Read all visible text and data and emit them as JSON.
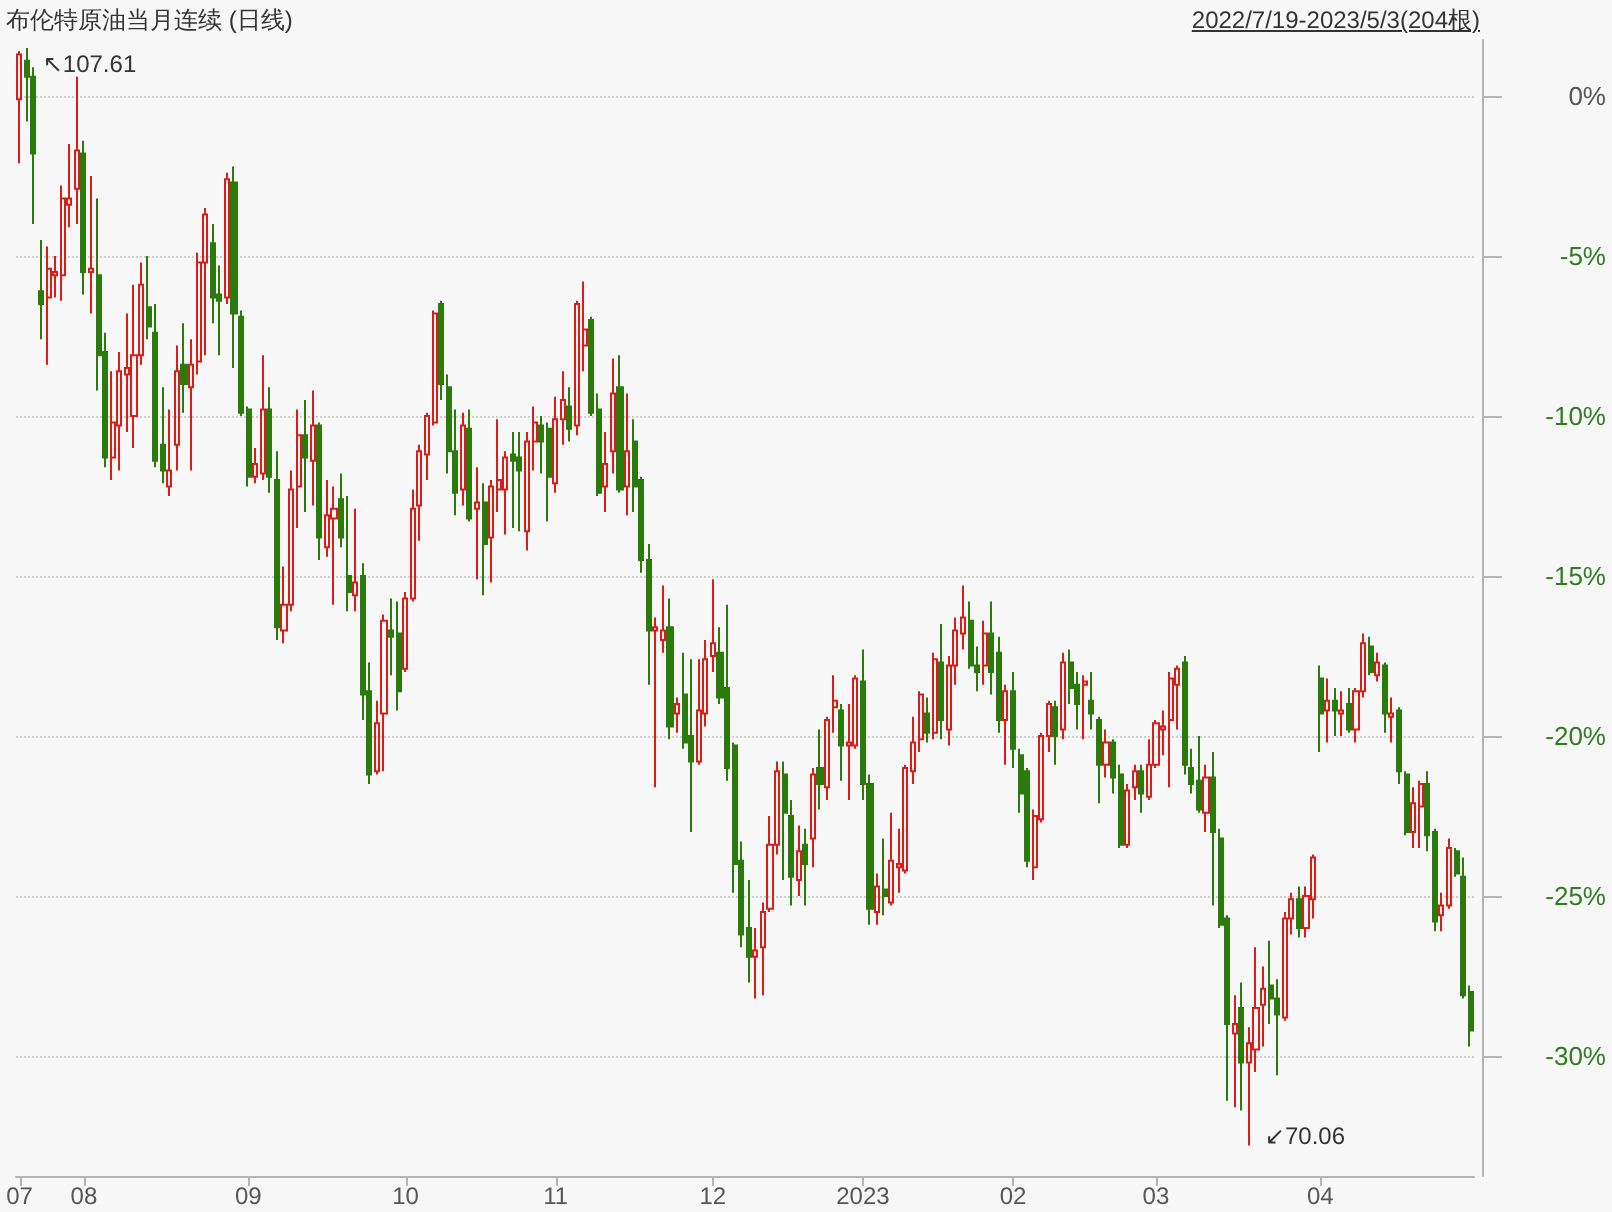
{
  "chart_data": {
    "type": "candlestick",
    "title": "布伦特原油当月连续 (日线)",
    "subtitle": "2022/7/19-2023/5/3(204根)",
    "categories": [
      "07",
      null,
      null,
      null,
      null,
      null,
      null,
      null,
      null,
      "08",
      null,
      null,
      null,
      null,
      null,
      null,
      null,
      null,
      null,
      null,
      null,
      null,
      null,
      null,
      null,
      null,
      null,
      null,
      null,
      null,
      null,
      null,
      "09",
      null,
      null,
      null,
      null,
      null,
      null,
      null,
      null,
      null,
      null,
      null,
      null,
      null,
      null,
      null,
      null,
      null,
      null,
      null,
      null,
      null,
      "10",
      null,
      null,
      null,
      null,
      null,
      null,
      null,
      null,
      null,
      null,
      null,
      null,
      null,
      null,
      null,
      null,
      null,
      null,
      null,
      null,
      "11",
      null,
      null,
      null,
      null,
      null,
      null,
      null,
      null,
      null,
      null,
      null,
      null,
      null,
      null,
      null,
      null,
      null,
      null,
      null,
      null,
      null,
      "12",
      null,
      null,
      null,
      null,
      null,
      null,
      null,
      null,
      null,
      null,
      null,
      null,
      null,
      null,
      null,
      null,
      null,
      null,
      null,
      null,
      "2023",
      null,
      null,
      null,
      null,
      null,
      null,
      null,
      null,
      null,
      null,
      null,
      null,
      null,
      null,
      null,
      null,
      null,
      null,
      null,
      null,
      "02",
      null,
      null,
      null,
      null,
      null,
      null,
      null,
      null,
      null,
      null,
      null,
      null,
      null,
      null,
      null,
      null,
      null,
      null,
      null,
      "03",
      null,
      null,
      null,
      null,
      null,
      null,
      null,
      null,
      null,
      null,
      null,
      null,
      null,
      null,
      null,
      null,
      null,
      null,
      null,
      null,
      null,
      null,
      "04",
      null,
      null,
      null,
      null,
      null,
      null,
      null,
      null,
      null,
      null,
      null,
      null,
      null,
      null,
      null,
      null,
      null,
      null,
      null,
      null,
      null
    ],
    "ohlc": [
      [
        -0.1,
        1.4,
        -2.1,
        1.3
      ],
      [
        1.1,
        1.5,
        -0.8,
        0.6
      ],
      [
        0.6,
        0.9,
        -4.0,
        -1.8
      ],
      [
        -6.1,
        -4.5,
        -7.6,
        -6.5
      ],
      [
        -6.3,
        -4.7,
        -8.4,
        -5.4
      ],
      [
        -5.6,
        -5.0,
        -6.3,
        -5.5
      ],
      [
        -5.6,
        -2.8,
        -6.4,
        -3.2
      ],
      [
        -3.4,
        -1.5,
        -4.1,
        -3.2
      ],
      [
        -2.9,
        0.6,
        -4.0,
        -1.7
      ],
      [
        -1.8,
        -1.4,
        -6.2,
        -5.5
      ],
      [
        -5.5,
        -2.5,
        -6.8,
        -5.4
      ],
      [
        -5.6,
        -3.2,
        -9.2,
        -8.1
      ],
      [
        -8.0,
        -7.4,
        -11.6,
        -11.3
      ],
      [
        -11.3,
        -8.6,
        -12.0,
        -10.2
      ],
      [
        -10.3,
        -8.0,
        -11.7,
        -8.6
      ],
      [
        -8.7,
        -6.8,
        -10.5,
        -8.5
      ],
      [
        -10.0,
        -5.9,
        -11.0,
        -8.1
      ],
      [
        -8.1,
        -5.2,
        -8.4,
        -5.9
      ],
      [
        -6.6,
        -5.0,
        -7.6,
        -7.2
      ],
      [
        -7.4,
        -6.5,
        -11.6,
        -11.4
      ],
      [
        -10.9,
        -9.1,
        -12.1,
        -11.7
      ],
      [
        -12.2,
        -9.8,
        -12.5,
        -11.7
      ],
      [
        -10.9,
        -7.8,
        -11.7,
        -8.6
      ],
      [
        -8.4,
        -7.1,
        -9.9,
        -9.0
      ],
      [
        -9.1,
        -7.6,
        -11.7,
        -8.4
      ],
      [
        -8.3,
        -4.9,
        -8.7,
        -5.2
      ],
      [
        -5.2,
        -3.5,
        -8.1,
        -3.7
      ],
      [
        -4.6,
        -4.0,
        -7.1,
        -6.3
      ],
      [
        -6.2,
        -5.3,
        -8.1,
        -6.4
      ],
      [
        -6.3,
        -2.4,
        -6.5,
        -2.6
      ],
      [
        -2.7,
        -2.2,
        -8.5,
        -6.8
      ],
      [
        -6.9,
        -6.7,
        -10.0,
        -9.9
      ],
      [
        -9.8,
        -9.7,
        -12.2,
        -11.9
      ],
      [
        -11.9,
        -11.0,
        -12.1,
        -11.5
      ],
      [
        -11.8,
        -8.1,
        -12.0,
        -9.8
      ],
      [
        -9.8,
        -9.1,
        -12.4,
        -11.9
      ],
      [
        -12.0,
        -11.1,
        -17.0,
        -16.6
      ],
      [
        -16.7,
        -14.7,
        -17.1,
        -15.9
      ],
      [
        -15.9,
        -11.7,
        -16.1,
        -12.3
      ],
      [
        -12.2,
        -9.8,
        -13.5,
        -10.6
      ],
      [
        -10.6,
        -9.5,
        -13.0,
        -11.3
      ],
      [
        -11.4,
        -9.2,
        -12.8,
        -10.3
      ],
      [
        -10.3,
        -10.2,
        -14.5,
        -13.8
      ],
      [
        -14.1,
        -12.0,
        -14.4,
        -13.1
      ],
      [
        -13.2,
        -12.2,
        -15.9,
        -12.9
      ],
      [
        -12.6,
        -11.8,
        -14.1,
        -13.8
      ],
      [
        -15.0,
        -12.5,
        -16.1,
        -15.5
      ],
      [
        -15.6,
        -12.9,
        -16.1,
        -15.2
      ],
      [
        -15.0,
        -14.6,
        -19.5,
        -18.7
      ],
      [
        -18.6,
        -17.7,
        -21.5,
        -21.2
      ],
      [
        -21.1,
        -18.9,
        -21.2,
        -19.6
      ],
      [
        -19.3,
        -16.2,
        -21.1,
        -16.4
      ],
      [
        -16.7,
        -15.7,
        -18.1,
        -16.9
      ],
      [
        -16.8,
        -15.8,
        -19.2,
        -18.6
      ],
      [
        -17.9,
        -15.5,
        -18.0,
        -15.7
      ],
      [
        -15.7,
        -12.3,
        -15.8,
        -12.9
      ],
      [
        -12.8,
        -10.9,
        -13.9,
        -11.1
      ],
      [
        -11.2,
        -9.9,
        -12.0,
        -10.0
      ],
      [
        -10.2,
        -6.7,
        -10.3,
        -6.8
      ],
      [
        -6.5,
        -6.4,
        -9.5,
        -9.0
      ],
      [
        -9.1,
        -8.7,
        -11.8,
        -11.1
      ],
      [
        -11.1,
        -9.8,
        -13.1,
        -12.4
      ],
      [
        -12.3,
        -9.9,
        -12.8,
        -10.3
      ],
      [
        -10.4,
        -9.8,
        -13.3,
        -13.2
      ],
      [
        -12.9,
        -11.6,
        -15.1,
        -12.7
      ],
      [
        -12.7,
        -12.1,
        -15.6,
        -14.0
      ],
      [
        -13.8,
        -12.0,
        -15.2,
        -12.2
      ],
      [
        -12.3,
        -10.1,
        -13.0,
        -12.0
      ],
      [
        -12.3,
        -11.1,
        -13.7,
        -11.3
      ],
      [
        -11.2,
        -10.5,
        -13.5,
        -11.4
      ],
      [
        -11.3,
        -10.5,
        -13.6,
        -11.7
      ],
      [
        -13.6,
        -10.5,
        -14.2,
        -10.8
      ],
      [
        -10.8,
        -9.7,
        -11.7,
        -10.2
      ],
      [
        -10.3,
        -10.0,
        -11.8,
        -10.8
      ],
      [
        -10.4,
        -10.2,
        -13.3,
        -11.9
      ],
      [
        -12.1,
        -9.4,
        -12.4,
        -10.1
      ],
      [
        -10.1,
        -8.6,
        -10.9,
        -9.5
      ],
      [
        -9.7,
        -9.1,
        -10.8,
        -10.4
      ],
      [
        -10.3,
        -6.4,
        -10.6,
        -6.5
      ],
      [
        -7.8,
        -5.8,
        -8.6,
        -7.3
      ],
      [
        -7.0,
        -6.9,
        -10.0,
        -9.9
      ],
      [
        -9.8,
        -9.3,
        -12.5,
        -12.4
      ],
      [
        -12.2,
        -10.5,
        -13.0,
        -11.5
      ],
      [
        -11.1,
        -8.2,
        -11.8,
        -9.3
      ],
      [
        -9.1,
        -8.1,
        -12.4,
        -12.3
      ],
      [
        -12.2,
        -9.3,
        -13.1,
        -11.1
      ],
      [
        -10.8,
        -10.1,
        -13.0,
        -12.2
      ],
      [
        -12.0,
        -11.9,
        -14.9,
        -14.5
      ],
      [
        -14.5,
        -14.0,
        -18.4,
        -16.7
      ],
      [
        -16.7,
        -16.3,
        -21.6,
        -16.6
      ],
      [
        -17.0,
        -15.3,
        -17.4,
        -16.7
      ],
      [
        -16.6,
        -15.7,
        -20.1,
        -19.7
      ],
      [
        -19.3,
        -18.8,
        -19.9,
        -19.0
      ],
      [
        -18.7,
        -17.4,
        -20.4,
        -20.2
      ],
      [
        -20.0,
        -17.6,
        -23.0,
        -20.8
      ],
      [
        -20.8,
        -17.6,
        -20.9,
        -19.2
      ],
      [
        -19.3,
        -17.0,
        -19.7,
        -17.6
      ],
      [
        -17.5,
        -15.1,
        -18.0,
        -17.1
      ],
      [
        -17.4,
        -16.6,
        -19.0,
        -18.8
      ],
      [
        -18.5,
        -15.9,
        -21.4,
        -21.0
      ],
      [
        -20.3,
        -20.2,
        -24.9,
        -24.0
      ],
      [
        -23.9,
        -23.3,
        -26.6,
        -26.2
      ],
      [
        -26.0,
        -24.5,
        -27.7,
        -26.9
      ],
      [
        -26.9,
        -26.0,
        -28.2,
        -26.7
      ],
      [
        -26.6,
        -25.2,
        -28.1,
        -25.5
      ],
      [
        -25.4,
        -22.5,
        -25.5,
        -23.4
      ],
      [
        -23.4,
        -20.8,
        -23.7,
        -21.1
      ],
      [
        -21.2,
        -20.8,
        -24.5,
        -22.4
      ],
      [
        -22.5,
        -22.0,
        -25.3,
        -24.4
      ],
      [
        -24.5,
        -22.8,
        -25.0,
        -23.6
      ],
      [
        -23.4,
        -22.9,
        -25.3,
        -24.0
      ],
      [
        -23.2,
        -21.0,
        -24.1,
        -21.2
      ],
      [
        -21.0,
        -19.8,
        -22.3,
        -21.5
      ],
      [
        -21.6,
        -19.4,
        -22.0,
        -19.5
      ],
      [
        -19.1,
        -18.1,
        -19.9,
        -18.9
      ],
      [
        -19.2,
        -19.0,
        -21.4,
        -20.3
      ],
      [
        -20.3,
        -19.0,
        -22.0,
        -20.2
      ],
      [
        -20.3,
        -18.1,
        -20.4,
        -18.2
      ],
      [
        -18.3,
        -17.3,
        -22.0,
        -21.5
      ],
      [
        -21.5,
        -21.2,
        -25.9,
        -25.4
      ],
      [
        -25.5,
        -24.3,
        -25.9,
        -24.7
      ],
      [
        -24.8,
        -23.2,
        -25.6,
        -25.0
      ],
      [
        -25.2,
        -22.4,
        -25.3,
        -23.9
      ],
      [
        -24.1,
        -22.9,
        -24.9,
        -24.0
      ],
      [
        -24.2,
        -20.9,
        -24.3,
        -21.0
      ],
      [
        -21.1,
        -19.4,
        -21.5,
        -20.2
      ],
      [
        -20.1,
        -18.6,
        -20.5,
        -18.7
      ],
      [
        -19.3,
        -18.8,
        -20.2,
        -19.9
      ],
      [
        -19.9,
        -17.4,
        -20.1,
        -17.6
      ],
      [
        -17.7,
        -16.5,
        -20.1,
        -19.5
      ],
      [
        -19.8,
        -17.5,
        -20.3,
        -17.8
      ],
      [
        -17.8,
        -16.3,
        -18.4,
        -16.7
      ],
      [
        -16.8,
        -15.3,
        -17.3,
        -16.3
      ],
      [
        -16.4,
        -15.8,
        -17.9,
        -17.8
      ],
      [
        -17.8,
        -17.2,
        -18.6,
        -18.0
      ],
      [
        -17.8,
        -16.4,
        -18.4,
        -16.8
      ],
      [
        -16.8,
        -15.8,
        -18.7,
        -18.0
      ],
      [
        -17.4,
        -16.9,
        -19.9,
        -19.5
      ],
      [
        -19.5,
        -18.4,
        -20.9,
        -18.6
      ],
      [
        -18.6,
        -18.0,
        -21.0,
        -20.4
      ],
      [
        -20.6,
        -20.4,
        -22.4,
        -21.8
      ],
      [
        -21.1,
        -21.0,
        -24.1,
        -23.9
      ],
      [
        -24.1,
        -22.3,
        -24.5,
        -22.5
      ],
      [
        -22.6,
        -19.9,
        -22.7,
        -20.0
      ],
      [
        -20.0,
        -18.9,
        -20.5,
        -19.0
      ],
      [
        -19.1,
        -18.9,
        -20.9,
        -20.0
      ],
      [
        -19.8,
        -17.4,
        -20.1,
        -17.7
      ],
      [
        -17.7,
        -17.3,
        -19.0,
        -18.5
      ],
      [
        -18.4,
        -18.0,
        -19.8,
        -19.0
      ],
      [
        -18.4,
        -18.1,
        -20.1,
        -18.3
      ],
      [
        -18.9,
        -18.0,
        -19.8,
        -19.3
      ],
      [
        -19.5,
        -19.4,
        -22.1,
        -20.9
      ],
      [
        -20.9,
        -19.8,
        -21.3,
        -20.2
      ],
      [
        -20.2,
        -20.1,
        -21.8,
        -21.3
      ],
      [
        -21.2,
        -20.9,
        -23.5,
        -23.4
      ],
      [
        -23.4,
        -21.5,
        -23.5,
        -21.7
      ],
      [
        -21.6,
        -20.9,
        -22.0,
        -21.1
      ],
      [
        -21.1,
        -20.9,
        -22.4,
        -21.8
      ],
      [
        -21.9,
        -20.1,
        -22.0,
        -20.9
      ],
      [
        -20.9,
        -19.5,
        -21.0,
        -19.6
      ],
      [
        -19.8,
        -19.2,
        -20.6,
        -19.7
      ],
      [
        -19.5,
        -18.0,
        -21.6,
        -18.2
      ],
      [
        -18.4,
        -17.8,
        -19.8,
        -17.9
      ],
      [
        -17.7,
        -17.5,
        -21.2,
        -20.9
      ],
      [
        -21.0,
        -20.4,
        -21.8,
        -21.5
      ],
      [
        -21.4,
        -20.0,
        -22.4,
        -22.3
      ],
      [
        -22.4,
        -20.9,
        -23.0,
        -21.3
      ],
      [
        -21.3,
        -20.5,
        -25.3,
        -23.0
      ],
      [
        -23.2,
        -22.9,
        -26.0,
        -25.9
      ],
      [
        -25.7,
        -25.6,
        -31.4,
        -29.0
      ],
      [
        -29.3,
        -28.1,
        -31.6,
        -29.0
      ],
      [
        -28.5,
        -27.7,
        -31.7,
        -30.2
      ],
      [
        -30.2,
        -29.1,
        -32.8,
        -29.6
      ],
      [
        -29.8,
        -26.6,
        -30.5,
        -28.5
      ],
      [
        -28.4,
        -27.2,
        -29.7,
        -27.9
      ],
      [
        -27.8,
        -26.4,
        -29.0,
        -28.2
      ],
      [
        -28.2,
        -27.6,
        -30.6,
        -28.7
      ],
      [
        -28.8,
        -25.5,
        -28.9,
        -25.7
      ],
      [
        -25.7,
        -24.9,
        -26.2,
        -25.1
      ],
      [
        -25.1,
        -24.7,
        -26.3,
        -26.0
      ],
      [
        -26.0,
        -24.7,
        -26.3,
        -25.0
      ],
      [
        -25.1,
        -23.7,
        -25.7,
        -23.8
      ],
      [
        -18.2,
        -17.8,
        -20.5,
        -19.3
      ],
      [
        -19.2,
        -18.2,
        -20.2,
        -18.9
      ],
      [
        -18.9,
        -18.5,
        -20.0,
        -19.2
      ],
      [
        -19.3,
        -18.6,
        -20.0,
        -19.2
      ],
      [
        -19.0,
        -18.5,
        -19.9,
        -19.8
      ],
      [
        -19.8,
        -18.5,
        -20.2,
        -18.6
      ],
      [
        -18.6,
        -16.8,
        -18.8,
        -17.1
      ],
      [
        -17.2,
        -16.9,
        -18.1,
        -18.0
      ],
      [
        -18.1,
        -17.4,
        -18.3,
        -17.7
      ],
      [
        -17.8,
        -17.7,
        -19.9,
        -19.3
      ],
      [
        -19.4,
        -18.8,
        -20.2,
        -19.3
      ],
      [
        -19.2,
        -19.1,
        -21.5,
        -21.1
      ],
      [
        -21.2,
        -21.1,
        -23.1,
        -23.0
      ],
      [
        -23.0,
        -21.6,
        -23.5,
        -22.1
      ],
      [
        -22.2,
        -21.4,
        -23.5,
        -21.5
      ],
      [
        -21.5,
        -21.1,
        -23.6,
        -23.1
      ],
      [
        -23.0,
        -22.9,
        -26.1,
        -25.8
      ],
      [
        -25.6,
        -24.9,
        -26.1,
        -25.3
      ],
      [
        -25.3,
        -23.2,
        -25.4,
        -23.5
      ],
      [
        -23.6,
        -23.5,
        -24.4,
        -24.3
      ],
      [
        -24.4,
        -23.8,
        -28.2,
        -28.1
      ],
      [
        -28.0,
        -27.8,
        -29.7,
        -29.2
      ]
    ],
    "ylim": [
      -33.75,
      1.75
    ],
    "yticks": [
      {
        "value": 0,
        "label": "0%"
      },
      {
        "value": -5,
        "label": "-5%"
      },
      {
        "value": -10,
        "label": "-10%"
      },
      {
        "value": -15,
        "label": "-15%"
      },
      {
        "value": -20,
        "label": "-20%"
      },
      {
        "value": -25,
        "label": "-25%"
      },
      {
        "value": -30,
        "label": "-30%"
      }
    ],
    "grid": "y",
    "annotations": [
      "↖107.61",
      "↙70.06"
    ]
  }
}
